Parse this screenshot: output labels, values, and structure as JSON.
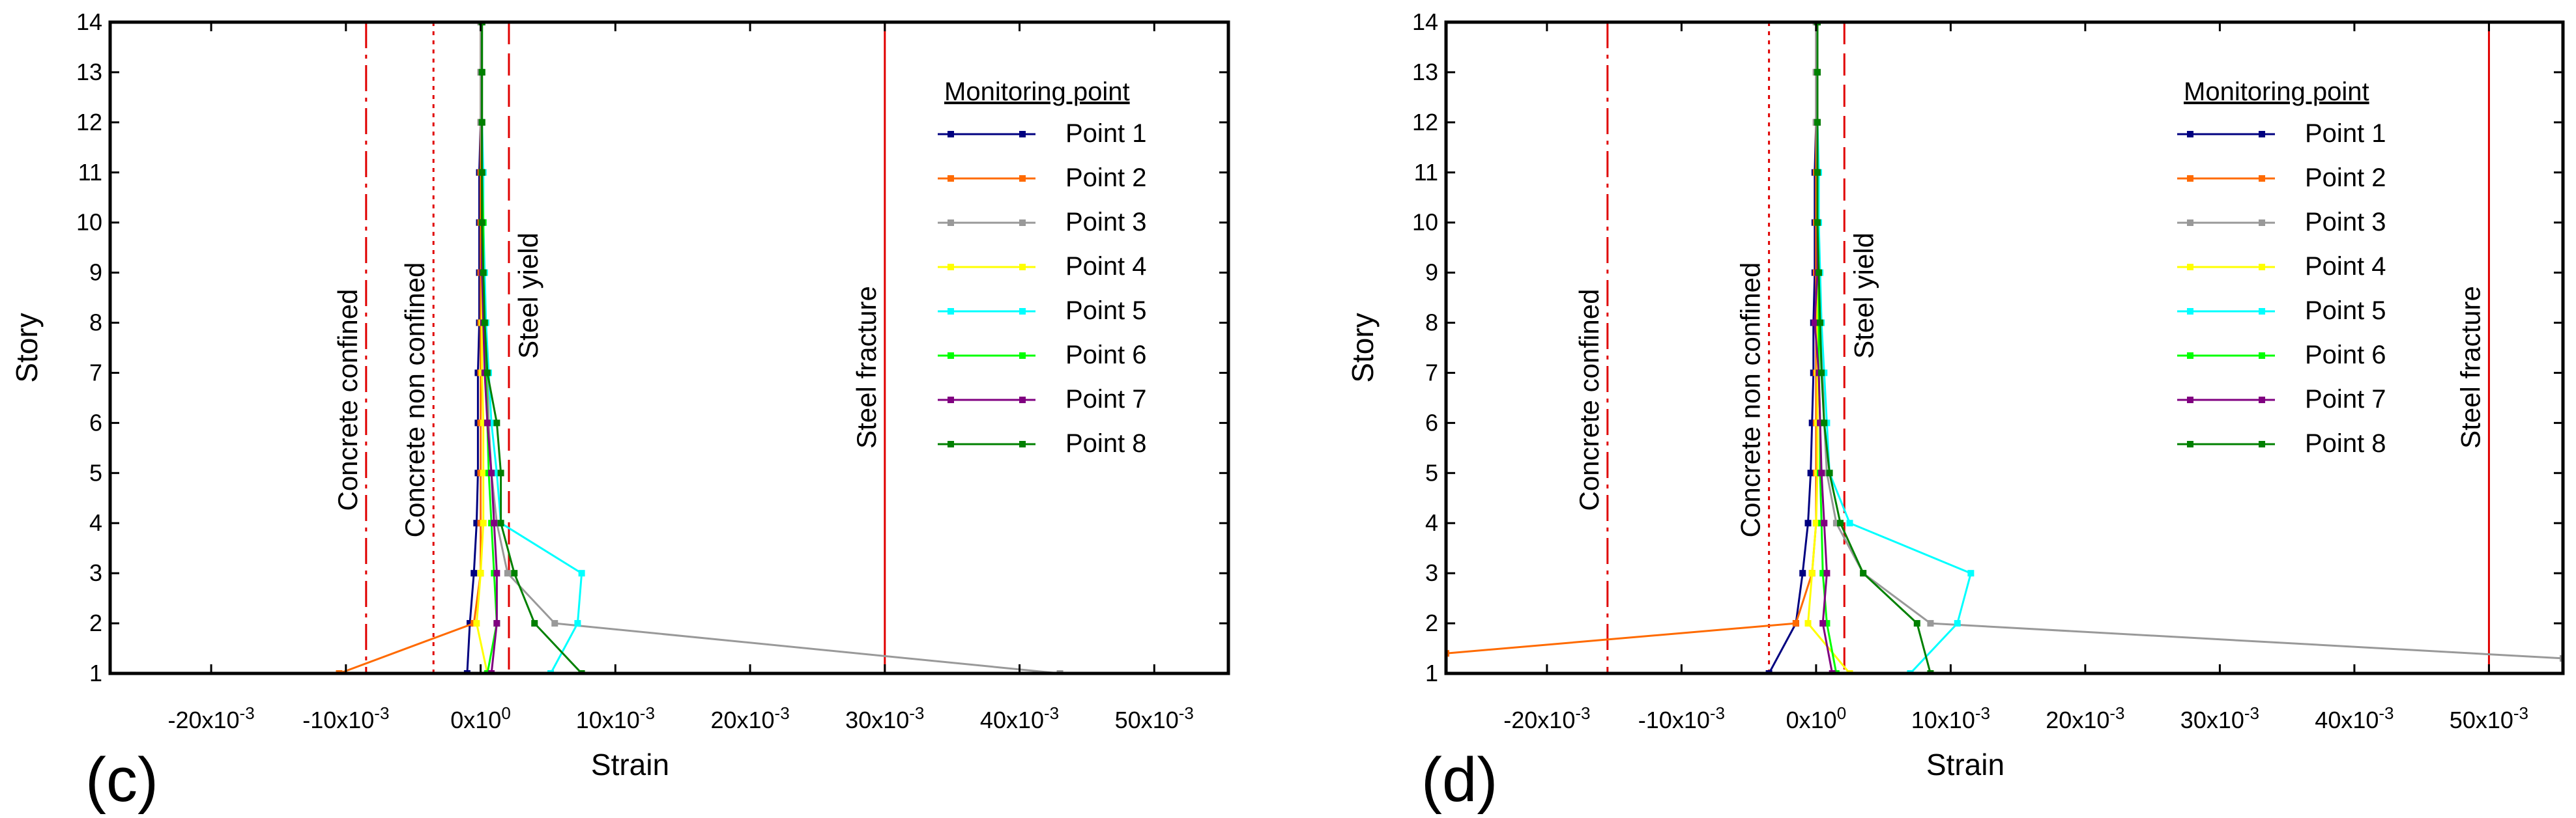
{
  "chart_data": [
    {
      "panel_label": "(c)",
      "type": "line",
      "xlabel": "Strain",
      "ylabel": "Story",
      "xlim": [
        -0.0275,
        0.0555
      ],
      "ylim": [
        1,
        14
      ],
      "xticks": [
        {
          "value": -0.02,
          "label": "-20x10-3"
        },
        {
          "value": -0.01,
          "label": "-10x10-3"
        },
        {
          "value": 0,
          "label": "0x100"
        },
        {
          "value": 0.01,
          "label": "10x10-3"
        },
        {
          "value": 0.02,
          "label": "20x10-3"
        },
        {
          "value": 0.03,
          "label": "30x10-3"
        },
        {
          "value": 0.04,
          "label": "40x10-3"
        },
        {
          "value": 0.05,
          "label": "50x10-3"
        }
      ],
      "yticks": [
        1,
        2,
        3,
        4,
        5,
        6,
        7,
        8,
        9,
        10,
        11,
        12,
        13,
        14
      ],
      "reference_lines": [
        {
          "label": "Concrete confined",
          "x": -0.0085,
          "style": "dashdot"
        },
        {
          "label": "Concrete non confined",
          "x": -0.0035,
          "style": "dotted"
        },
        {
          "label": "Steel yield",
          "x": 0.0021,
          "style": "dashed"
        },
        {
          "label": "Steel fracture",
          "x": 0.03,
          "style": "solid"
        }
      ],
      "legend_title": "Monitoring point",
      "legend_position": "top-right",
      "series": [
        {
          "name": "Point 1",
          "color": "#000080",
          "points": [
            [
              -0.001,
              1
            ],
            [
              -0.0008,
              2
            ],
            [
              -0.0005,
              3
            ],
            [
              -0.0003,
              4
            ],
            [
              -0.0002,
              5
            ],
            [
              -0.0002,
              6
            ],
            [
              -0.0002,
              7
            ],
            [
              -0.0001,
              8
            ],
            [
              -0.0001,
              9
            ],
            [
              -0.0001,
              10
            ],
            [
              -0.0001,
              11
            ],
            [
              0,
              12
            ],
            [
              0,
              13
            ],
            [
              0,
              14
            ]
          ]
        },
        {
          "name": "Point 2",
          "color": "#ff6a00",
          "points": [
            [
              -0.0105,
              1
            ],
            [
              -0.0005,
              2
            ],
            [
              0,
              3
            ],
            [
              0,
              4
            ],
            [
              0,
              5
            ],
            [
              0,
              6
            ],
            [
              0,
              7
            ],
            [
              0,
              8
            ],
            [
              0,
              9
            ],
            [
              0,
              10
            ],
            [
              0,
              11
            ],
            [
              0,
              12
            ],
            [
              0,
              13
            ],
            [
              0,
              14
            ]
          ]
        },
        {
          "name": "Point 3",
          "color": "#999999",
          "points": [
            [
              0.043,
              1
            ],
            [
              0.0055,
              2
            ],
            [
              0.002,
              3
            ],
            [
              0.0012,
              4
            ],
            [
              0.0008,
              5
            ],
            [
              0.0006,
              6
            ],
            [
              0.0005,
              7
            ],
            [
              0.0003,
              8
            ],
            [
              0.0002,
              9
            ],
            [
              0.0001,
              10
            ],
            [
              0.0001,
              11
            ],
            [
              0,
              12
            ],
            [
              0,
              13
            ],
            [
              0,
              14
            ]
          ]
        },
        {
          "name": "Point 4",
          "color": "#ffff00",
          "points": [
            [
              0.0005,
              1
            ],
            [
              -0.0003,
              2
            ],
            [
              0,
              3
            ],
            [
              0.0002,
              4
            ],
            [
              0.0002,
              5
            ],
            [
              0.0002,
              6
            ],
            [
              0.0001,
              7
            ],
            [
              0.0001,
              8
            ],
            [
              0.0001,
              9
            ],
            [
              0.0001,
              10
            ],
            [
              0.0001,
              11
            ],
            [
              0.0001,
              12
            ],
            [
              0.0001,
              13
            ],
            [
              0.0001,
              14
            ]
          ]
        },
        {
          "name": "Point 5",
          "color": "#00ffff",
          "points": [
            [
              0.0052,
              1
            ],
            [
              0.0072,
              2
            ],
            [
              0.0075,
              3
            ],
            [
              0.0015,
              4
            ],
            [
              0.0012,
              5
            ],
            [
              0.0008,
              6
            ],
            [
              0.0006,
              7
            ],
            [
              0.0004,
              8
            ],
            [
              0.0003,
              9
            ],
            [
              0.0002,
              10
            ],
            [
              0.0002,
              11
            ],
            [
              0.0001,
              12
            ],
            [
              0.0001,
              13
            ],
            [
              0.0001,
              14
            ]
          ]
        },
        {
          "name": "Point 6",
          "color": "#00ff00",
          "points": [
            [
              0.0005,
              1
            ],
            [
              0.0012,
              2
            ],
            [
              0.001,
              3
            ],
            [
              0.0008,
              4
            ],
            [
              0.0006,
              5
            ],
            [
              0.0005,
              6
            ],
            [
              0.0004,
              7
            ],
            [
              0.0003,
              8
            ],
            [
              0.0002,
              9
            ],
            [
              0.0002,
              10
            ],
            [
              0.0001,
              11
            ],
            [
              0.0001,
              12
            ],
            [
              0.0001,
              13
            ],
            [
              0.0001,
              14
            ]
          ]
        },
        {
          "name": "Point 7",
          "color": "#800080",
          "points": [
            [
              0.0008,
              1
            ],
            [
              0.0012,
              2
            ],
            [
              0.0012,
              3
            ],
            [
              0.001,
              4
            ],
            [
              0.0008,
              5
            ],
            [
              0.0005,
              6
            ],
            [
              0.0003,
              7
            ],
            [
              0.0002,
              8
            ],
            [
              0.0001,
              9
            ],
            [
              0.0001,
              10
            ],
            [
              0.0001,
              11
            ],
            [
              0.0001,
              12
            ],
            [
              0.0001,
              13
            ],
            [
              0.0001,
              14
            ]
          ]
        },
        {
          "name": "Point 8",
          "color": "#008000",
          "points": [
            [
              0.0075,
              1
            ],
            [
              0.004,
              2
            ],
            [
              0.0025,
              3
            ],
            [
              0.0015,
              4
            ],
            [
              0.0015,
              5
            ],
            [
              0.0012,
              6
            ],
            [
              0.0005,
              7
            ],
            [
              0.0003,
              8
            ],
            [
              0.0002,
              9
            ],
            [
              0.0001,
              10
            ],
            [
              0.0001,
              11
            ],
            [
              0.0001,
              12
            ],
            [
              0.0001,
              13
            ],
            [
              0.0001,
              14
            ]
          ]
        }
      ]
    },
    {
      "panel_label": "(d)",
      "type": "line",
      "xlabel": "Strain",
      "ylabel": "Story",
      "xlim": [
        -0.0275,
        0.0555
      ],
      "ylim": [
        1,
        14
      ],
      "xticks": [
        {
          "value": -0.02,
          "label": "-20x10-3"
        },
        {
          "value": -0.01,
          "label": "-10x10-3"
        },
        {
          "value": 0,
          "label": "0x100"
        },
        {
          "value": 0.01,
          "label": "10x10-3"
        },
        {
          "value": 0.02,
          "label": "20x10-3"
        },
        {
          "value": 0.03,
          "label": "30x10-3"
        },
        {
          "value": 0.04,
          "label": "40x10-3"
        },
        {
          "value": 0.05,
          "label": "50x10-3"
        }
      ],
      "yticks": [
        1,
        2,
        3,
        4,
        5,
        6,
        7,
        8,
        9,
        10,
        11,
        12,
        13,
        14
      ],
      "reference_lines": [
        {
          "label": "Concrete confined",
          "x": -0.0155,
          "style": "dashdot"
        },
        {
          "label": "Concrete non confined",
          "x": -0.0035,
          "style": "dotted"
        },
        {
          "label": "Steel yield",
          "x": 0.0021,
          "style": "dashed"
        },
        {
          "label": "Steel fracture",
          "x": 0.05,
          "style": "solid"
        }
      ],
      "legend_title": "Monitoring point",
      "legend_position": "top-right",
      "series": [
        {
          "name": "Point 1",
          "color": "#000080",
          "points": [
            [
              -0.0035,
              1
            ],
            [
              -0.0015,
              2
            ],
            [
              -0.001,
              3
            ],
            [
              -0.0006,
              4
            ],
            [
              -0.0004,
              5
            ],
            [
              -0.0003,
              6
            ],
            [
              -0.0002,
              7
            ],
            [
              -0.0002,
              8
            ],
            [
              -0.0001,
              9
            ],
            [
              -0.0001,
              10
            ],
            [
              -0.0001,
              11
            ],
            [
              0,
              12
            ],
            [
              0,
              13
            ],
            [
              0,
              14
            ]
          ]
        },
        {
          "name": "Point 2",
          "color": "#ff6a00",
          "points": [
            [
              -0.0275,
              1.4
            ],
            [
              -0.0015,
              2
            ],
            [
              -0.0003,
              3
            ],
            [
              0,
              4
            ],
            [
              0,
              5
            ],
            [
              0,
              6
            ],
            [
              0,
              7
            ],
            [
              0,
              8
            ],
            [
              0,
              9
            ],
            [
              0,
              10
            ],
            [
              0,
              11
            ],
            [
              0,
              12
            ],
            [
              0,
              13
            ],
            [
              0,
              14
            ]
          ]
        },
        {
          "name": "Point 3",
          "color": "#999999",
          "points": [
            [
              0.0555,
              1.3
            ],
            [
              0.0085,
              2
            ],
            [
              0.0035,
              3
            ],
            [
              0.0015,
              4
            ],
            [
              0.0008,
              5
            ],
            [
              0.0006,
              6
            ],
            [
              0.0005,
              7
            ],
            [
              0.0003,
              8
            ],
            [
              0.0002,
              9
            ],
            [
              0.0001,
              10
            ],
            [
              0.0001,
              11
            ],
            [
              0,
              12
            ],
            [
              0,
              13
            ],
            [
              0,
              14
            ]
          ]
        },
        {
          "name": "Point 4",
          "color": "#ffff00",
          "points": [
            [
              0.0025,
              1
            ],
            [
              -0.0006,
              2
            ],
            [
              -0.0003,
              3
            ],
            [
              0,
              4
            ],
            [
              0.0001,
              5
            ],
            [
              0.0001,
              6
            ],
            [
              0.0001,
              7
            ],
            [
              0.0001,
              8
            ],
            [
              0.0001,
              9
            ],
            [
              0.0001,
              10
            ],
            [
              0.0001,
              11
            ],
            [
              0.0001,
              12
            ],
            [
              0.0001,
              13
            ],
            [
              0.0001,
              14
            ]
          ]
        },
        {
          "name": "Point 5",
          "color": "#00ffff",
          "points": [
            [
              0.007,
              1
            ],
            [
              0.0105,
              2
            ],
            [
              0.0115,
              3
            ],
            [
              0.0025,
              4
            ],
            [
              0.001,
              5
            ],
            [
              0.0008,
              6
            ],
            [
              0.0006,
              7
            ],
            [
              0.0004,
              8
            ],
            [
              0.0003,
              9
            ],
            [
              0.0002,
              10
            ],
            [
              0.0002,
              11
            ],
            [
              0.0001,
              12
            ],
            [
              0.0001,
              13
            ],
            [
              0.0001,
              14
            ]
          ]
        },
        {
          "name": "Point 6",
          "color": "#00ff00",
          "points": [
            [
              0.0015,
              1
            ],
            [
              0.0008,
              2
            ],
            [
              0.0005,
              3
            ],
            [
              0.0004,
              4
            ],
            [
              0.0003,
              5
            ],
            [
              0.0003,
              6
            ],
            [
              0.0002,
              7
            ],
            [
              0.0002,
              8
            ],
            [
              0.0002,
              9
            ],
            [
              0.0001,
              10
            ],
            [
              0.0001,
              11
            ],
            [
              0.0001,
              12
            ],
            [
              0.0001,
              13
            ],
            [
              0.0001,
              14
            ]
          ]
        },
        {
          "name": "Point 7",
          "color": "#800080",
          "points": [
            [
              0.0012,
              1
            ],
            [
              0.0005,
              2
            ],
            [
              0.0008,
              3
            ],
            [
              0.0006,
              4
            ],
            [
              0.0004,
              5
            ],
            [
              0.0003,
              6
            ],
            [
              0.0002,
              7
            ],
            [
              -0.0001,
              8
            ],
            [
              0.0001,
              9
            ],
            [
              0.0001,
              10
            ],
            [
              0.0001,
              11
            ],
            [
              0.0001,
              12
            ],
            [
              0.0001,
              13
            ],
            [
              0.0001,
              14
            ]
          ]
        },
        {
          "name": "Point 8",
          "color": "#008000",
          "points": [
            [
              0.0085,
              1
            ],
            [
              0.0075,
              2
            ],
            [
              0.0035,
              3
            ],
            [
              0.0018,
              4
            ],
            [
              0.001,
              5
            ],
            [
              0.0006,
              6
            ],
            [
              0.0004,
              7
            ],
            [
              0.0003,
              8
            ],
            [
              0.0002,
              9
            ],
            [
              0.0001,
              10
            ],
            [
              0.0001,
              11
            ],
            [
              0.0001,
              12
            ],
            [
              0.0001,
              13
            ],
            [
              0.0001,
              14
            ]
          ]
        }
      ]
    }
  ]
}
